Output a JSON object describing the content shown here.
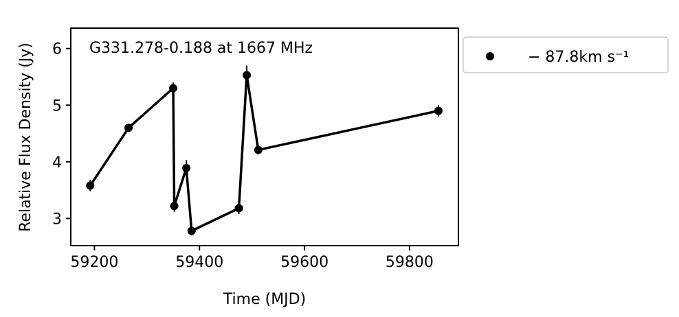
{
  "chart_data": {
    "type": "line",
    "title": "",
    "annotation": "G331.278-0.188 at 1667 MHz",
    "xlabel": "Time (MJD)",
    "ylabel": "Relative Flux Density (Jy)",
    "xlim": [
      59155,
      59893
    ],
    "ylim": [
      2.52,
      6.36
    ],
    "xticks": [
      59200,
      59400,
      59600,
      59800
    ],
    "yticks": [
      3,
      4,
      5,
      6
    ],
    "grid": false,
    "legend_position": "outside-right",
    "series": [
      {
        "name": "− 87.8km s⁻¹",
        "color": "#000000",
        "x": [
          59192,
          59265,
          59350,
          59352,
          59375,
          59385,
          59475,
          59490,
          59512,
          59855
        ],
        "y": [
          3.58,
          4.6,
          5.3,
          3.22,
          3.89,
          2.78,
          3.18,
          5.53,
          4.21,
          4.9
        ],
        "yerr": [
          0.1,
          0.07,
          0.1,
          0.1,
          0.14,
          0.08,
          0.1,
          0.17,
          0.08,
          0.1
        ]
      }
    ]
  }
}
